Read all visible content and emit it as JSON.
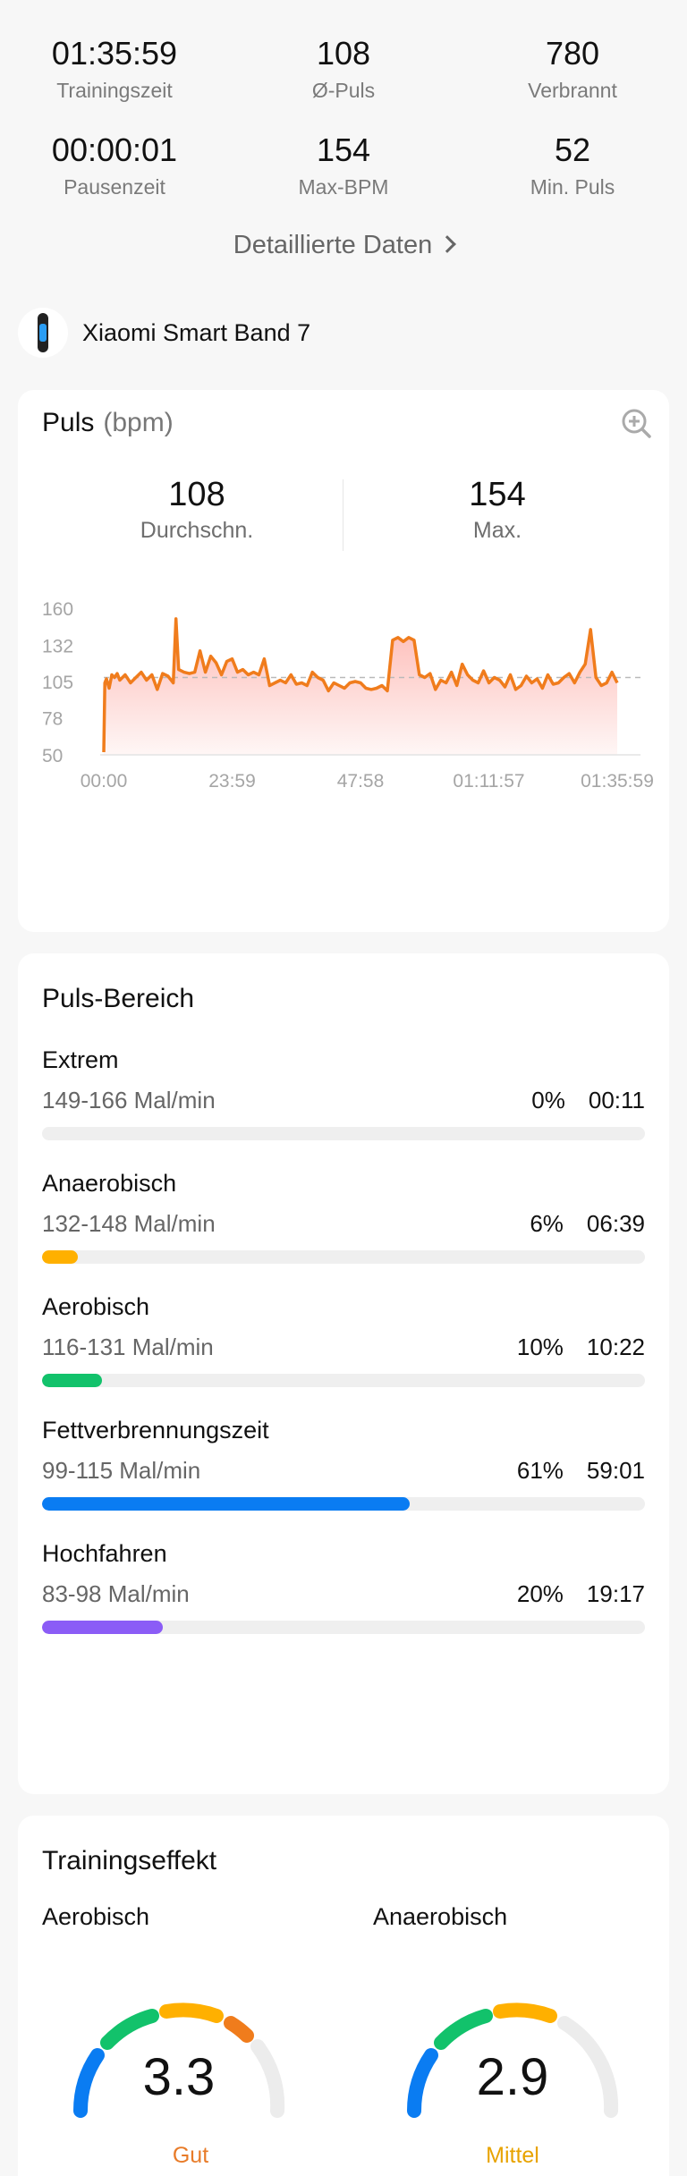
{
  "summary": [
    {
      "value": "01:35:59",
      "label": "Trainingszeit"
    },
    {
      "value": "108",
      "label": "Ø-Puls"
    },
    {
      "value": "780",
      "label": "Verbrannt"
    },
    {
      "value": "00:00:01",
      "label": "Pausenzeit"
    },
    {
      "value": "154",
      "label": "Max-BPM"
    },
    {
      "value": "52",
      "label": "Min. Puls"
    }
  ],
  "detail_link": "Detaillierte Daten",
  "device": {
    "name": "Xiaomi Smart Band 7",
    "icon": "smartband-icon"
  },
  "pulse": {
    "title": "Puls",
    "unit": "(bpm)",
    "avg_value": "108",
    "avg_label": "Durchschn.",
    "max_value": "154",
    "max_label": "Max."
  },
  "chart_data": {
    "type": "area",
    "ylim": [
      50,
      160
    ],
    "yticks": [
      "160",
      "132",
      "105",
      "78",
      "50"
    ],
    "ytick_values": [
      160,
      132,
      105,
      78,
      50
    ],
    "xticks": [
      "00:00",
      "23:59",
      "47:58",
      "01:11:57",
      "01:35:59"
    ],
    "x_minutes_range": [
      0,
      95.98
    ],
    "average_line": 108,
    "line_color": "#f07c1c",
    "fill_color": "#fdb7b2",
    "series": [
      {
        "x": [
          0,
          0.2,
          0.5,
          1,
          1.5,
          2,
          2.5,
          3,
          4,
          5,
          6,
          7,
          8,
          9,
          10,
          11,
          12,
          13,
          13.5,
          14,
          15,
          16,
          17,
          18,
          19,
          20,
          21,
          22,
          23,
          24,
          25,
          26,
          27,
          28,
          29,
          30,
          31,
          32,
          33,
          34,
          35,
          36,
          37,
          38,
          39,
          40,
          41,
          42,
          43,
          44,
          45,
          46,
          47,
          48,
          49,
          50,
          51,
          52,
          53,
          54,
          55,
          56,
          57,
          58,
          59,
          60,
          61,
          62,
          63,
          64,
          65,
          66,
          67,
          68,
          69,
          70,
          71,
          72,
          73,
          74,
          75,
          76,
          77,
          78,
          79,
          80,
          81,
          82,
          83,
          84,
          85,
          86,
          87,
          88,
          89,
          90,
          91,
          92,
          93,
          94,
          95,
          95.98
        ],
        "y": [
          52,
          104,
          107,
          100,
          110,
          108,
          111,
          106,
          110,
          104,
          108,
          112,
          106,
          110,
          99,
          111,
          109,
          104,
          152,
          114,
          112,
          111,
          112,
          128,
          112,
          124,
          119,
          110,
          120,
          122,
          112,
          114,
          110,
          112,
          110,
          122,
          102,
          104,
          106,
          104,
          110,
          103,
          104,
          102,
          112,
          108,
          106,
          98,
          104,
          102,
          100,
          104,
          105,
          104,
          100,
          99,
          100,
          102,
          98,
          136,
          138,
          135,
          138,
          136,
          110,
          108,
          111,
          99,
          106,
          104,
          112,
          102,
          118,
          110,
          106,
          104,
          113,
          104,
          108,
          106,
          101,
          110,
          99,
          102,
          109,
          104,
          107,
          100,
          110,
          103,
          104,
          108,
          111,
          104,
          112,
          118,
          144,
          108,
          102,
          104,
          112,
          104
        ]
      }
    ]
  },
  "zones_title": "Puls-Bereich",
  "zones": [
    {
      "name": "Extrem",
      "range": "149-166 Mal/min",
      "percent": "0%",
      "time": "00:11",
      "fraction": 0.0,
      "color": "#ff5a3c"
    },
    {
      "name": "Anaerobisch",
      "range": "132-148 Mal/min",
      "percent": "6%",
      "time": "06:39",
      "fraction": 0.06,
      "color": "#ffb000"
    },
    {
      "name": "Aerobisch",
      "range": "116-131 Mal/min",
      "percent": "10%",
      "time": "10:22",
      "fraction": 0.1,
      "color": "#12c26b"
    },
    {
      "name": "Fettverbrennungszeit",
      "range": "99-115 Mal/min",
      "percent": "61%",
      "time": "59:01",
      "fraction": 0.61,
      "color": "#0a7cf2"
    },
    {
      "name": "Hochfahren",
      "range": "83-98 Mal/min",
      "percent": "20%",
      "time": "19:17",
      "fraction": 0.2,
      "color": "#8b5cf6"
    }
  ],
  "training": {
    "title": "Trainingseffekt",
    "aerobic_label": "Aerobisch",
    "aerobic_value": "3.3",
    "aerobic_rating": "Gut",
    "aerobic_rating_color": "#e87b28",
    "anaerobic_label": "Anaerobisch",
    "anaerobic_value": "2.9",
    "anaerobic_rating": "Mittel",
    "anaerobic_rating_color": "#e8a300"
  }
}
